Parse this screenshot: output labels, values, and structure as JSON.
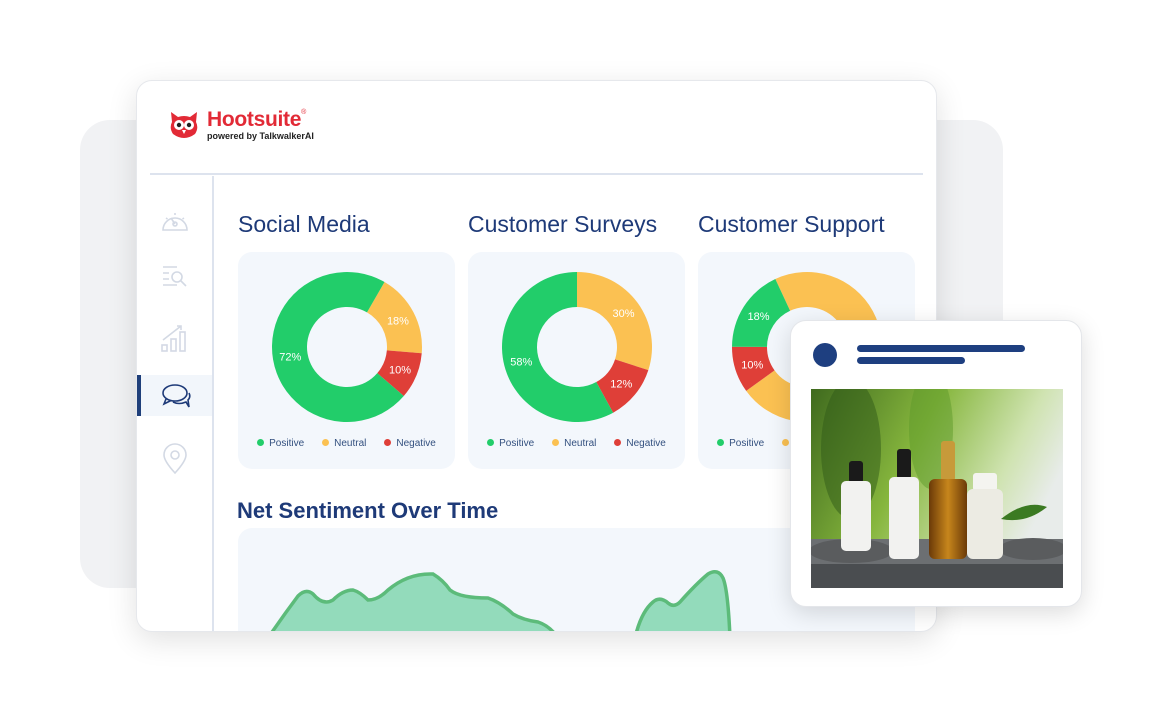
{
  "brand": {
    "name": "Hootsuite",
    "registered": "®",
    "tagline": "powered by TalkwalkerAI"
  },
  "sidebar": {
    "items": [
      {
        "icon": "dashboard-gauge-icon",
        "active": false
      },
      {
        "icon": "search-list-icon",
        "active": false
      },
      {
        "icon": "analytics-growth-icon",
        "active": false
      },
      {
        "icon": "chat-bubbles-icon",
        "active": true
      },
      {
        "icon": "location-pin-icon",
        "active": false
      }
    ]
  },
  "colors": {
    "positive": "#22cd6a",
    "neutral": "#fbc152",
    "negative": "#df3f38",
    "navy": "#1e3a78",
    "area_fill": "#93dbbb",
    "area_line": "#5cbb7a"
  },
  "legend": {
    "positive": "Positive",
    "neutral": "Neutral",
    "negative": "Negative"
  },
  "charts": [
    {
      "title": "Social Media",
      "positive": 72,
      "neutral": 18,
      "negative": 10,
      "labels": {
        "positive": "72%",
        "neutral": "18%",
        "negative": "10%"
      }
    },
    {
      "title": "Customer Surveys",
      "positive": 58,
      "neutral": 30,
      "negative": 12,
      "labels": {
        "positive": "58%",
        "neutral": "30%",
        "negative": "12%"
      }
    },
    {
      "title": "Customer Support",
      "positive": 18,
      "neutral": 72,
      "negative": 10,
      "labels": {
        "positive": "18%",
        "negative": "10%"
      }
    }
  ],
  "net_sentiment": {
    "title": "Net Sentiment Over Time"
  },
  "post": {
    "image": "skincare-serum-bottles-photo"
  }
}
